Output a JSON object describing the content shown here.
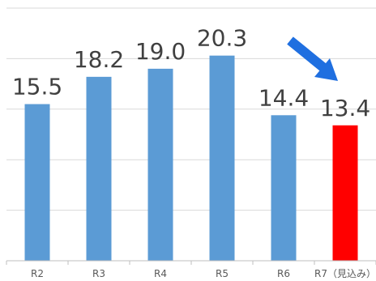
{
  "chart_data": {
    "type": "bar",
    "categories": [
      "R2",
      "R3",
      "R4",
      "R5",
      "R6",
      "R7（見込み）"
    ],
    "values": [
      15.5,
      18.2,
      19.0,
      20.3,
      14.4,
      13.4
    ],
    "value_labels": [
      "15.5",
      "18.2",
      "19.0",
      "20.3",
      "14.4",
      "13.4"
    ],
    "ylim": [
      0,
      25
    ],
    "grid": true,
    "title": "",
    "xlabel": "",
    "ylabel": "",
    "colors": {
      "bar": "#5b9bd5",
      "highlight_bar": "#ff0000",
      "arrow": "#1f6fe0"
    },
    "highlight_index": 5,
    "annotation": {
      "icon": "arrow-down-right-icon",
      "points_to": "R7（見込み）"
    }
  }
}
